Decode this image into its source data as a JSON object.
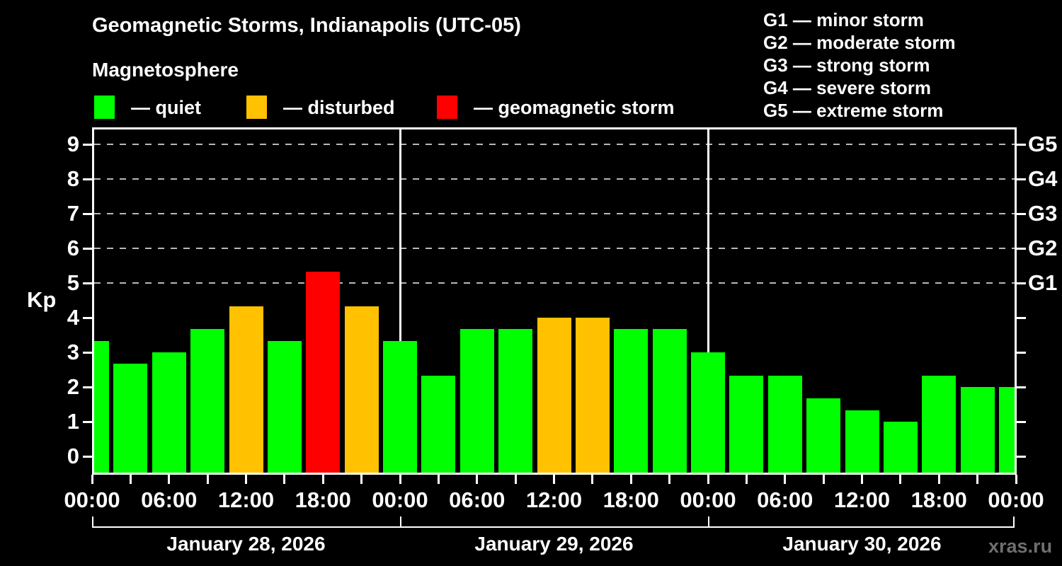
{
  "title": "Geomagnetic Storms, Indianapolis (UTC-05)",
  "subtitle": "Magnetosphere",
  "kp_axis_label": "Kp",
  "watermark": "xras.ru",
  "legend": {
    "items": [
      {
        "key": "quiet",
        "label": "— quiet",
        "color": "#00ff00"
      },
      {
        "key": "disturbed",
        "label": "— disturbed",
        "color": "#ffc100"
      },
      {
        "key": "storm",
        "label": "— geomagnetic storm",
        "color": "#ff0000"
      }
    ]
  },
  "storm_scale": [
    "G1 — minor storm",
    "G2 — moderate storm",
    "G3 — strong storm",
    "G4 — severe storm",
    "G5 — extreme storm"
  ],
  "chart_data": {
    "type": "bar",
    "title": "Geomagnetic Storms, Indianapolis (UTC-05)",
    "ylabel": "Kp",
    "ylim": [
      -0.47,
      9.45
    ],
    "yticks": [
      0,
      1,
      2,
      3,
      4,
      5,
      6,
      7,
      8,
      9
    ],
    "dashed_gridlines_kp": [
      5,
      6,
      7,
      8,
      9
    ],
    "right_axis_ticks": [
      {
        "kp": 5,
        "label": "G1"
      },
      {
        "kp": 6,
        "label": "G2"
      },
      {
        "kp": 7,
        "label": "G3"
      },
      {
        "kp": 8,
        "label": "G4"
      },
      {
        "kp": 9,
        "label": "G5"
      }
    ],
    "x_tick_labels": [
      "00:00",
      "06:00",
      "12:00",
      "18:00",
      "00:00",
      "06:00",
      "12:00",
      "18:00",
      "00:00",
      "06:00",
      "12:00",
      "18:00",
      "00:00"
    ],
    "day_labels": [
      "January 28, 2026",
      "January 29, 2026",
      "January 30, 2026"
    ],
    "colors": {
      "quiet": "#00ff00",
      "disturbed": "#ffc100",
      "storm": "#ff0000",
      "background": "#000000",
      "text": "#ffffff",
      "grid": "#b8b8b8",
      "watermark": "#6f6f6f"
    },
    "bars": [
      {
        "time": "Jan 28 00:00",
        "kp": 3.33,
        "level": "quiet"
      },
      {
        "time": "Jan 28 03:00",
        "kp": 2.67,
        "level": "quiet"
      },
      {
        "time": "Jan 28 06:00",
        "kp": 3.0,
        "level": "quiet"
      },
      {
        "time": "Jan 28 09:00",
        "kp": 3.67,
        "level": "quiet"
      },
      {
        "time": "Jan 28 12:00",
        "kp": 4.33,
        "level": "disturbed"
      },
      {
        "time": "Jan 28 15:00",
        "kp": 3.33,
        "level": "quiet"
      },
      {
        "time": "Jan 28 18:00",
        "kp": 5.33,
        "level": "storm"
      },
      {
        "time": "Jan 28 21:00",
        "kp": 4.33,
        "level": "disturbed"
      },
      {
        "time": "Jan 29 00:00",
        "kp": 3.33,
        "level": "quiet"
      },
      {
        "time": "Jan 29 03:00",
        "kp": 2.33,
        "level": "quiet"
      },
      {
        "time": "Jan 29 06:00",
        "kp": 3.67,
        "level": "quiet"
      },
      {
        "time": "Jan 29 09:00",
        "kp": 3.67,
        "level": "quiet"
      },
      {
        "time": "Jan 29 12:00",
        "kp": 4.0,
        "level": "disturbed"
      },
      {
        "time": "Jan 29 15:00",
        "kp": 4.0,
        "level": "disturbed"
      },
      {
        "time": "Jan 29 18:00",
        "kp": 3.67,
        "level": "quiet"
      },
      {
        "time": "Jan 29 21:00",
        "kp": 3.67,
        "level": "quiet"
      },
      {
        "time": "Jan 30 00:00",
        "kp": 3.0,
        "level": "quiet"
      },
      {
        "time": "Jan 30 03:00",
        "kp": 2.33,
        "level": "quiet"
      },
      {
        "time": "Jan 30 06:00",
        "kp": 2.33,
        "level": "quiet"
      },
      {
        "time": "Jan 30 09:00",
        "kp": 1.67,
        "level": "quiet"
      },
      {
        "time": "Jan 30 12:00",
        "kp": 1.33,
        "level": "quiet"
      },
      {
        "time": "Jan 30 15:00",
        "kp": 1.0,
        "level": "quiet"
      },
      {
        "time": "Jan 30 18:00",
        "kp": 2.33,
        "level": "quiet"
      },
      {
        "time": "Jan 30 21:00",
        "kp": 2.0,
        "level": "quiet"
      },
      {
        "time": "Jan 31 00:00",
        "kp": 2.0,
        "level": "quiet"
      }
    ]
  }
}
